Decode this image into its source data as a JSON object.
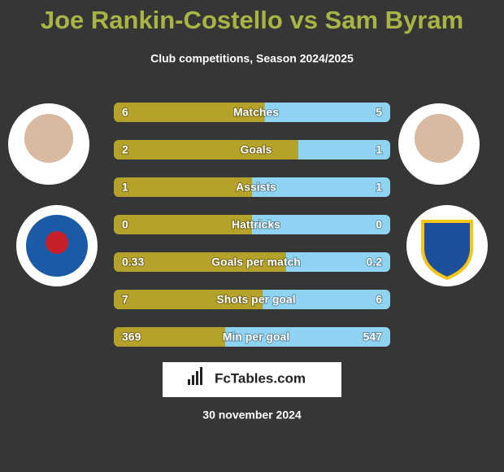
{
  "header": {
    "title": "Joe Rankin-Costello vs Sam Byram",
    "subtitle": "Club competitions, Season 2024/2025"
  },
  "rows": [
    {
      "label": "Matches",
      "left": 6,
      "right": 5
    },
    {
      "label": "Goals",
      "left": 2,
      "right": 1
    },
    {
      "label": "Assists",
      "left": 1,
      "right": 1
    },
    {
      "label": "Hattricks",
      "left": 0,
      "right": 0
    },
    {
      "label": "Goals per match",
      "left": 0.33,
      "right": 0.2
    },
    {
      "label": "Shots per goal",
      "left": 7,
      "right": 6
    },
    {
      "label": "Min per goal",
      "left": 369,
      "right": 547
    }
  ],
  "brand": "FcTables.com",
  "date": "30 november 2024"
}
